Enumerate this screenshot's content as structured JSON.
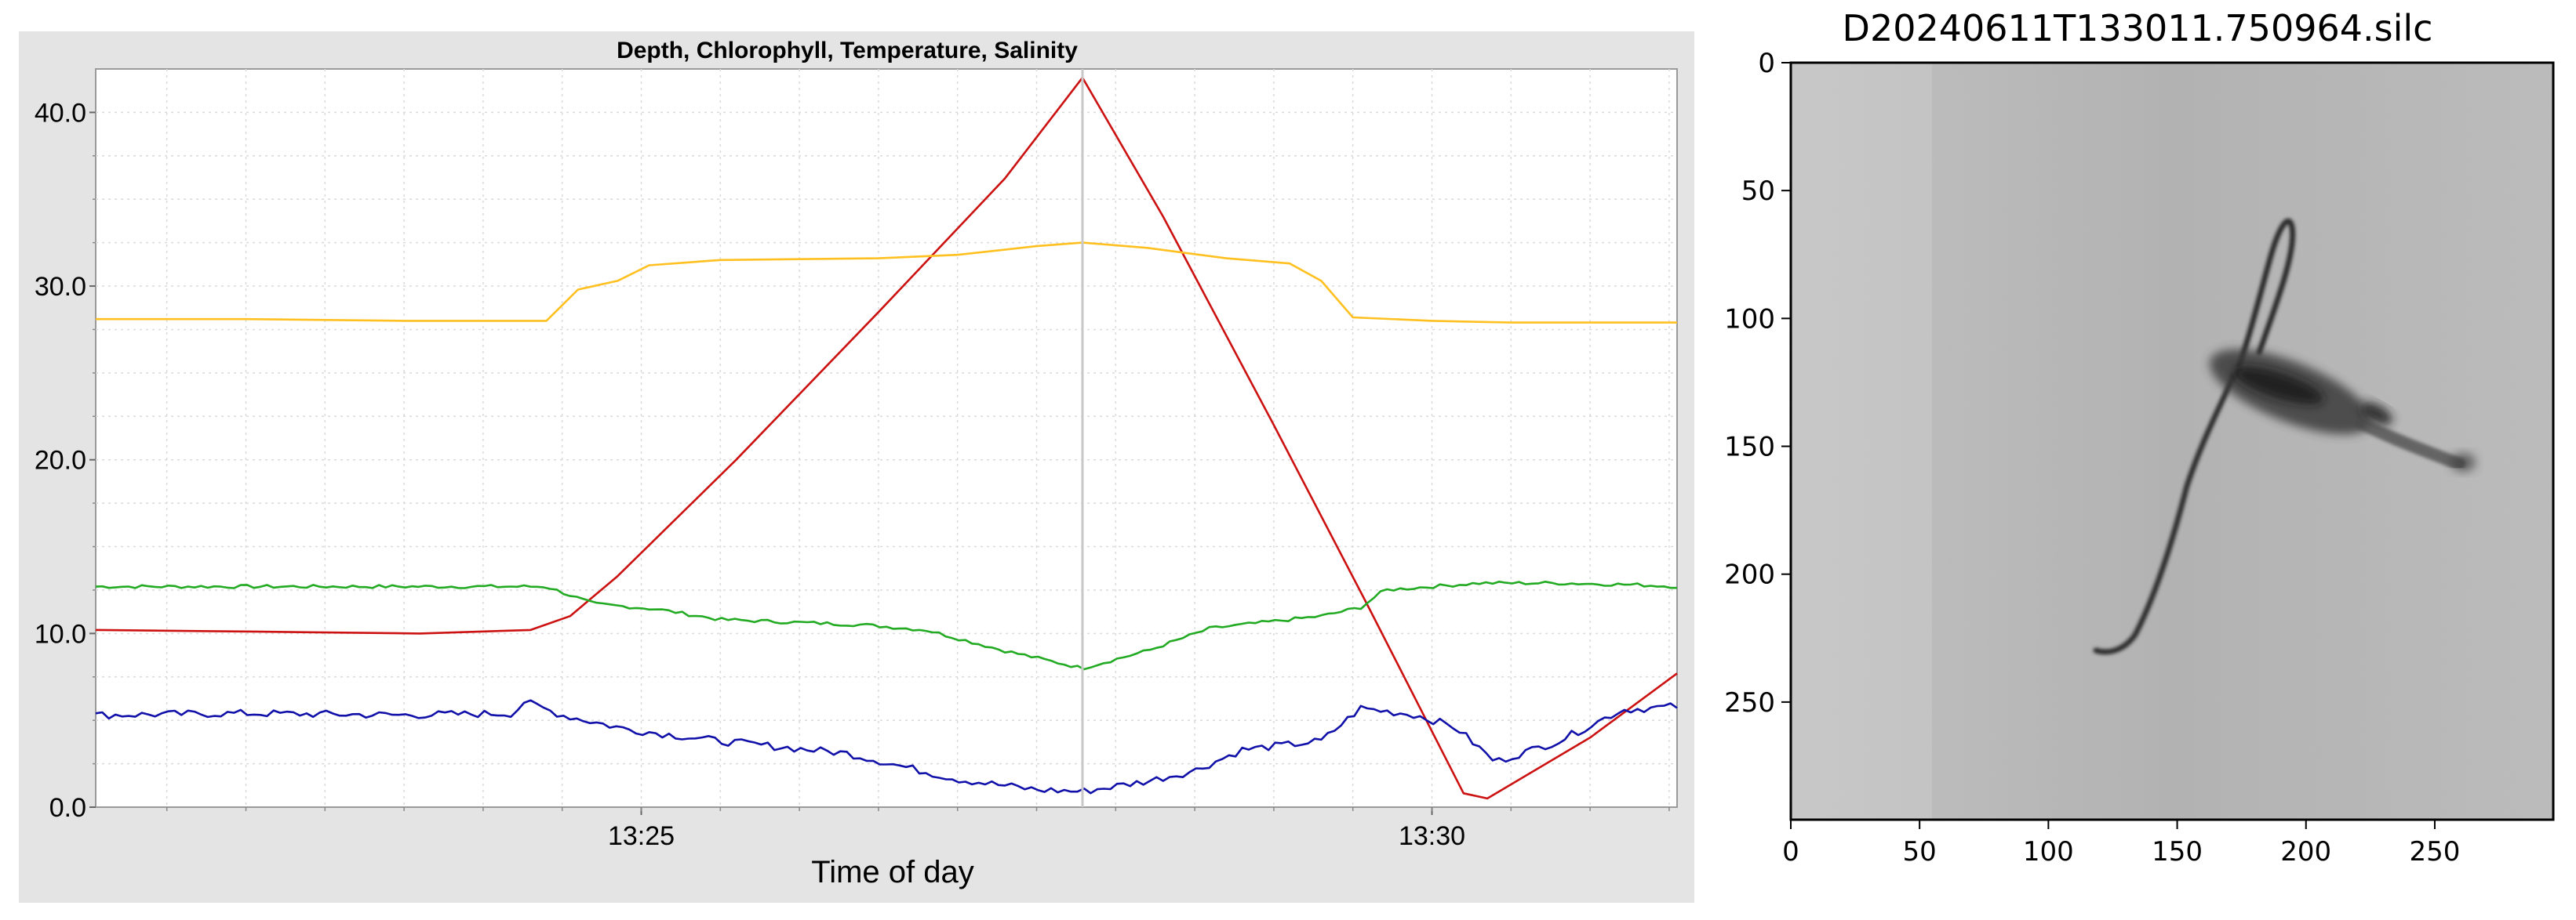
{
  "chart_data": [
    {
      "type": "line",
      "title": "Depth, Chlorophyll, Temperature, Salinity",
      "xlabel": "Time of day",
      "ylabel": "",
      "x_unit": "minutes",
      "xlim": [
        21.55,
        31.55
      ],
      "ylim": [
        0,
        42.5
      ],
      "grid": true,
      "legend": "none",
      "yticks": [
        {
          "value": 0,
          "label": "0.0"
        },
        {
          "value": 10,
          "label": "10.0"
        },
        {
          "value": 20,
          "label": "20.0"
        },
        {
          "value": 30,
          "label": "30.0"
        },
        {
          "value": 40,
          "label": "40.0"
        }
      ],
      "xticks": [
        {
          "value": 25,
          "label": "13:25"
        },
        {
          "value": 30,
          "label": "13:30"
        }
      ],
      "cursor_x": 27.79,
      "series": [
        {
          "color": "#cc1111",
          "x": [
            21.55,
            22.6,
            23.6,
            24.3,
            24.55,
            24.85,
            25.6,
            26.5,
            27.3,
            27.79,
            28.3,
            29.0,
            29.6,
            30.2,
            30.35,
            31.0,
            31.55
          ],
          "y": [
            10.2,
            10.1,
            10.0,
            10.2,
            11.0,
            13.3,
            20.0,
            28.5,
            36.2,
            42.0,
            34.0,
            22.0,
            11.5,
            0.8,
            0.5,
            4.0,
            7.7
          ]
        },
        {
          "color": "#ffc020",
          "x": [
            21.55,
            22.5,
            23.5,
            24.4,
            24.6,
            24.85,
            25.05,
            25.5,
            26.5,
            27.0,
            27.5,
            27.79,
            28.2,
            28.7,
            29.1,
            29.3,
            29.5,
            30.0,
            30.5,
            31.0,
            31.55
          ],
          "y": [
            28.1,
            28.1,
            28.0,
            28.0,
            29.8,
            30.3,
            31.2,
            31.5,
            31.6,
            31.8,
            32.3,
            32.5,
            32.2,
            31.6,
            31.3,
            30.3,
            28.2,
            28.0,
            27.9,
            27.9,
            27.9
          ]
        },
        {
          "color": "#22aa22",
          "x": [
            21.55,
            22.5,
            23.5,
            24.4,
            24.7,
            25.1,
            25.5,
            26.4,
            26.8,
            27.3,
            27.79,
            28.2,
            28.6,
            29.0,
            29.3,
            29.55,
            29.7,
            30.3,
            30.8,
            31.3,
            31.55
          ],
          "y": [
            12.7,
            12.7,
            12.7,
            12.7,
            11.7,
            11.4,
            10.8,
            10.5,
            10.2,
            9.0,
            8.0,
            9.0,
            10.3,
            10.7,
            11.0,
            11.5,
            12.5,
            12.9,
            12.9,
            12.8,
            12.7
          ],
          "noise": 0.1
        },
        {
          "color": "#1111aa",
          "x": [
            21.55,
            22.5,
            23.5,
            24.2,
            24.25,
            24.5,
            24.9,
            25.5,
            26.3,
            27.0,
            27.5,
            27.79,
            28.2,
            28.5,
            28.8,
            29.3,
            29.55,
            29.9,
            30.15,
            30.4,
            30.8,
            31.2,
            31.55
          ],
          "y": [
            5.3,
            5.4,
            5.3,
            5.4,
            6.1,
            5.3,
            4.5,
            3.8,
            3.1,
            1.6,
            1.0,
            0.9,
            1.5,
            2.1,
            3.3,
            3.8,
            5.7,
            5.3,
            4.6,
            2.6,
            3.8,
            5.6,
            5.8
          ],
          "noise": 0.22
        }
      ]
    },
    {
      "type": "heatmap",
      "title": "D20240611T133011.750964.silc",
      "xlim": [
        0,
        296
      ],
      "ylim": [
        296,
        0
      ],
      "xticks": [
        "0",
        "50",
        "100",
        "150",
        "200",
        "250"
      ],
      "yticks": [
        "0",
        "50",
        "100",
        "150",
        "200",
        "250"
      ],
      "colormap": "gray"
    }
  ]
}
